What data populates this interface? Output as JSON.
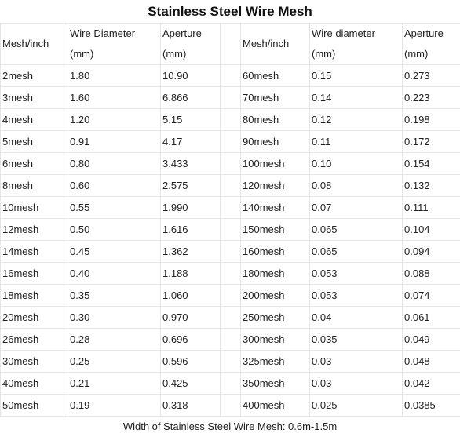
{
  "title": "Stainless Steel Wire Mesh",
  "headers": {
    "left": {
      "mesh": "Mesh/inch",
      "wire_line1": "Wire Diameter",
      "wire_line2": "(mm)",
      "aperture_line1": "Aperture",
      "aperture_line2": "(mm)"
    },
    "right": {
      "mesh": "Mesh/inch",
      "wire_line1": "Wire diameter",
      "wire_line2": "(mm)",
      "aperture_line1": "Aperture",
      "aperture_line2": "(mm)"
    }
  },
  "rows": [
    {
      "left": [
        "2mesh",
        "1.80",
        "10.90"
      ],
      "right": [
        "60mesh",
        "0.15",
        "0.273"
      ]
    },
    {
      "left": [
        "3mesh",
        "1.60",
        "6.866"
      ],
      "right": [
        "70mesh",
        "0.14",
        "0.223"
      ]
    },
    {
      "left": [
        "4mesh",
        "1.20",
        "5.15"
      ],
      "right": [
        "80mesh",
        "0.12",
        "0.198"
      ]
    },
    {
      "left": [
        "5mesh",
        "0.91",
        "4.17"
      ],
      "right": [
        "90mesh",
        "0.11",
        "0.172"
      ]
    },
    {
      "left": [
        "6mesh",
        "0.80",
        "3.433"
      ],
      "right": [
        "100mesh",
        "0.10",
        "0.154"
      ]
    },
    {
      "left": [
        "8mesh",
        "0.60",
        "2.575"
      ],
      "right": [
        "120mesh",
        "0.08",
        "0.132"
      ]
    },
    {
      "left": [
        "10mesh",
        "0.55",
        "1.990"
      ],
      "right": [
        "140mesh",
        "0.07",
        "0.111"
      ]
    },
    {
      "left": [
        "12mesh",
        "0.50",
        "1.616"
      ],
      "right": [
        "150mesh",
        "0.065",
        "0.104"
      ]
    },
    {
      "left": [
        "14mesh",
        "0.45",
        "1.362"
      ],
      "right": [
        "160mesh",
        "0.065",
        "0.094"
      ]
    },
    {
      "left": [
        "16mesh",
        "0.40",
        "1.188"
      ],
      "right": [
        "180mesh",
        "0.053",
        "0.088"
      ]
    },
    {
      "left": [
        "18mesh",
        "0.35",
        "1.060"
      ],
      "right": [
        "200mesh",
        "0.053",
        "0.074"
      ]
    },
    {
      "left": [
        "20mesh",
        "0.30",
        "0.970"
      ],
      "right": [
        "250mesh",
        "0.04",
        "0.061"
      ]
    },
    {
      "left": [
        "26mesh",
        "0.28",
        "0.696"
      ],
      "right": [
        "300mesh",
        "0.035",
        "0.049"
      ]
    },
    {
      "left": [
        "30mesh",
        "0.25",
        "0.596"
      ],
      "right": [
        "325mesh",
        "0.03",
        "0.048"
      ]
    },
    {
      "left": [
        "40mesh",
        "0.21",
        "0.425"
      ],
      "right": [
        "350mesh",
        "0.03",
        "0.042"
      ]
    },
    {
      "left": [
        "50mesh",
        "0.19",
        "0.318"
      ],
      "right": [
        "400mesh",
        "0.025",
        "0.0385"
      ]
    }
  ],
  "footer": "Width of Stainless Steel Wire Mesh: 0.6m-1.5m"
}
